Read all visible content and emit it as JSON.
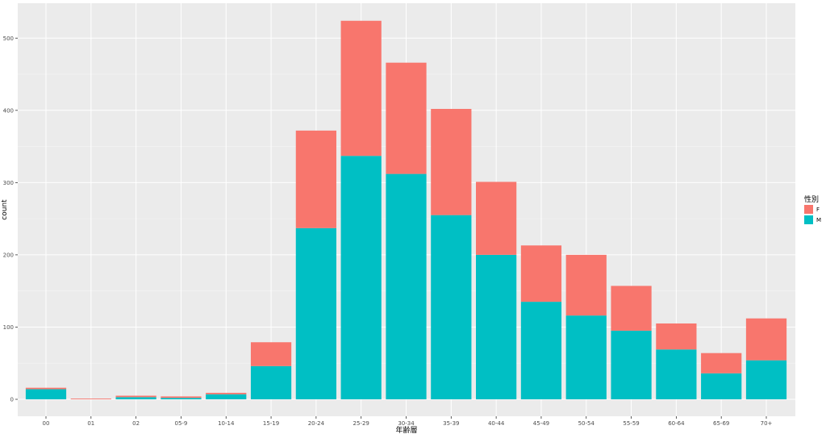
{
  "chart_data": {
    "type": "bar",
    "stacked": true,
    "xlabel": "年齢層",
    "ylabel": "count",
    "ylim": [
      0,
      550
    ],
    "yticks": [
      0,
      100,
      200,
      300,
      400,
      500
    ],
    "grid": true,
    "legend": {
      "title": "性別",
      "placement": "right"
    },
    "categories": [
      "00",
      "01",
      "02",
      "05-9",
      "10-14",
      "15-19",
      "20-24",
      "25-29",
      "30-34",
      "35-39",
      "40-44",
      "45-49",
      "50-54",
      "55-59",
      "60-64",
      "65-69",
      "70+"
    ],
    "series": [
      {
        "name": "M",
        "color": "#00BFC4",
        "values": [
          14,
          0,
          3,
          2,
          7,
          46,
          237,
          337,
          312,
          255,
          200,
          135,
          116,
          95,
          69,
          36,
          54
        ]
      },
      {
        "name": "F",
        "color": "#F8766D",
        "values": [
          2,
          1,
          2,
          2,
          2,
          33,
          135,
          187,
          154,
          147,
          101,
          78,
          84,
          62,
          36,
          28,
          58
        ]
      }
    ],
    "legend_order": [
      "F",
      "M"
    ]
  }
}
